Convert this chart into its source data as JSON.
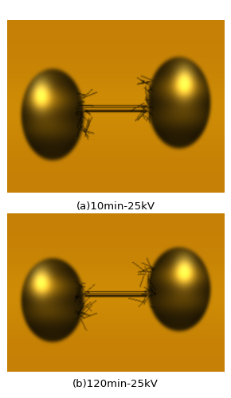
{
  "figure_width": 2.9,
  "figure_height": 5.0,
  "dpi": 100,
  "bg_color": "#ffffff",
  "panel_a_label": "(a)10min-25kV",
  "panel_b_label": "(b)120min-25kV",
  "label_fontsize": 9.5,
  "bg_orange": "#c88000",
  "electrode_base": "#a07808",
  "electrode_highlight": "#e8c840",
  "electrode_dark": "#604800",
  "electrode_ridge": "#805c08",
  "fiber_color": "#3a2800"
}
